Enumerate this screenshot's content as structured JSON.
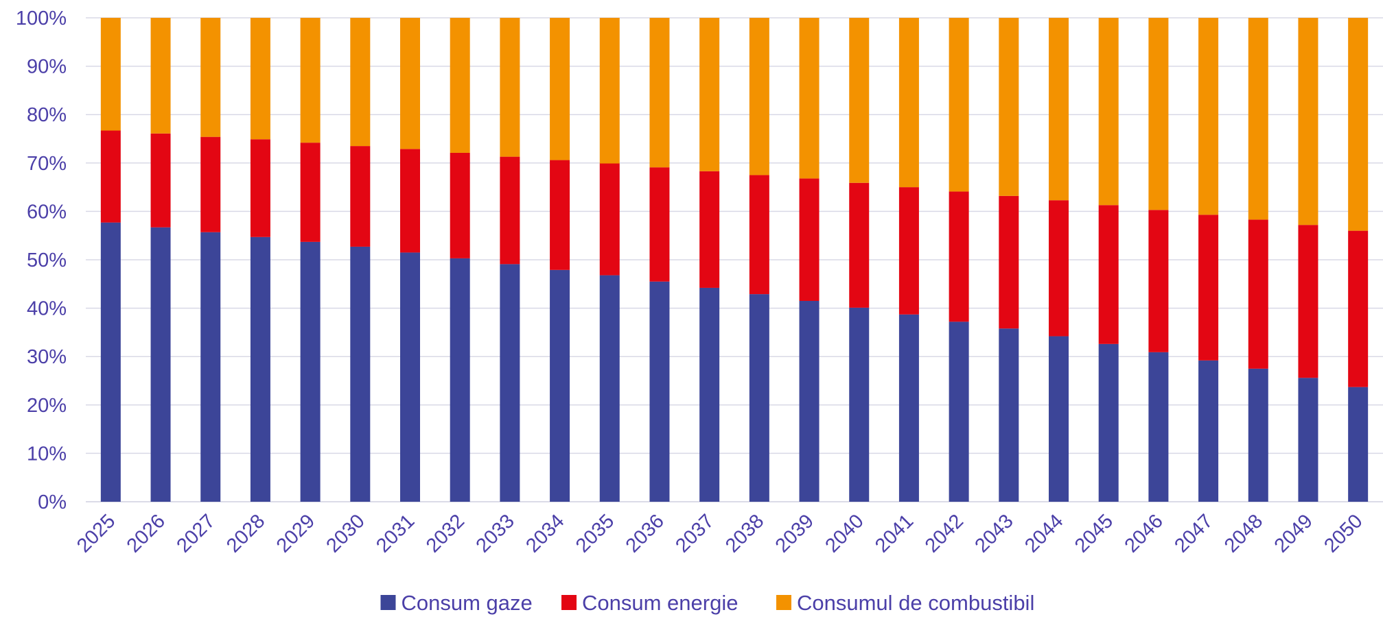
{
  "chart_data": {
    "type": "bar",
    "stacked": true,
    "percent_stacked": true,
    "title": "",
    "xlabel": "",
    "ylabel": "",
    "ylim": [
      0,
      100
    ],
    "y_ticks": [
      "0%",
      "10%",
      "20%",
      "30%",
      "40%",
      "50%",
      "60%",
      "70%",
      "80%",
      "90%",
      "100%"
    ],
    "grid": true,
    "legend_position": "bottom",
    "categories": [
      "2025",
      "2026",
      "2027",
      "2028",
      "2029",
      "2030",
      "2031",
      "2032",
      "2033",
      "2034",
      "2035",
      "2036",
      "2037",
      "2038",
      "2039",
      "2040",
      "2041",
      "2042",
      "2043",
      "2044",
      "2045",
      "2046",
      "2047",
      "2048",
      "2049",
      "2050"
    ],
    "series": [
      {
        "name": "Consum gaze",
        "color": "#3c4598",
        "values": [
          57.7,
          56.7,
          55.7,
          54.7,
          53.7,
          52.7,
          51.5,
          50.3,
          49.1,
          47.9,
          46.8,
          45.5,
          44.2,
          42.9,
          41.5,
          40.1,
          38.7,
          37.2,
          35.8,
          34.2,
          32.6,
          30.9,
          29.2,
          27.5,
          25.6,
          23.7
        ]
      },
      {
        "name": "Consum energie",
        "color": "#e30613",
        "values": [
          19.0,
          19.4,
          19.7,
          20.2,
          20.5,
          20.8,
          21.4,
          21.8,
          22.2,
          22.7,
          23.1,
          23.6,
          24.1,
          24.6,
          25.3,
          25.8,
          26.3,
          26.9,
          27.4,
          28.1,
          28.7,
          29.4,
          30.1,
          30.8,
          31.6,
          32.3
        ]
      },
      {
        "name": "Consumul de combustibil",
        "color": "#f39200",
        "values": [
          23.3,
          23.9,
          24.6,
          25.1,
          25.8,
          26.5,
          27.1,
          27.9,
          28.7,
          29.4,
          30.1,
          30.9,
          31.7,
          32.5,
          33.2,
          34.1,
          35.0,
          35.9,
          36.8,
          37.7,
          38.7,
          39.7,
          40.7,
          41.7,
          42.8,
          44.0
        ]
      }
    ]
  },
  "style": {
    "axis_text_color": "#4b3fa8",
    "grid_color": "#d9d9e6",
    "axis_color": "#cfcfdf"
  }
}
